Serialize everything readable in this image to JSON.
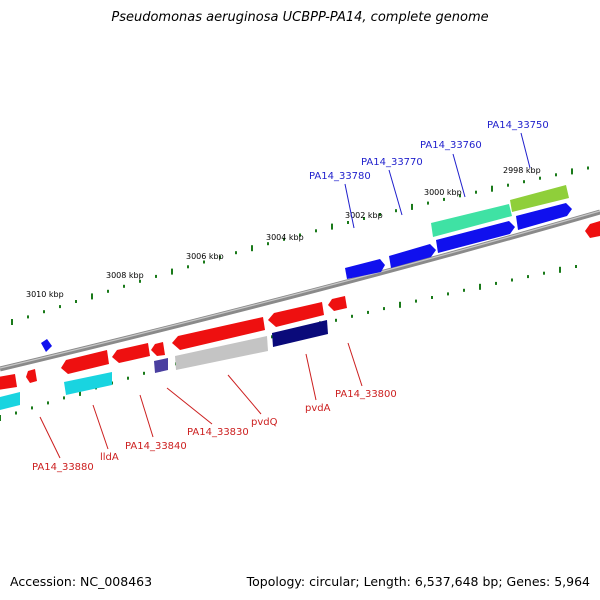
{
  "title": "Pseudomonas aeruginosa UCBPP-PA14, complete genome",
  "accession_text": "Accession: NC_008463",
  "summary_text": "Topology: circular; Length: 6,537,648 bp; Genes: 5,964",
  "colors": {
    "forward_label": "#1f1fcc",
    "reverse_label": "#cc1f1f",
    "backbone": "#808080",
    "tick": "#1a7a1a"
  },
  "scale_labels": [
    "3010 kbp",
    "3008 kbp",
    "3006 kbp",
    "3004 kbp",
    "3002 kbp",
    "3000 kbp",
    "2998 kbp"
  ],
  "forward_gene_labels": [
    "PA14_33780",
    "PA14_33770",
    "PA14_33760",
    "PA14_33750"
  ],
  "reverse_gene_labels": [
    "PA14_33880",
    "lldA",
    "PA14_33840",
    "PA14_33830",
    "pvdQ",
    "pvdA",
    "PA14_33800"
  ]
}
